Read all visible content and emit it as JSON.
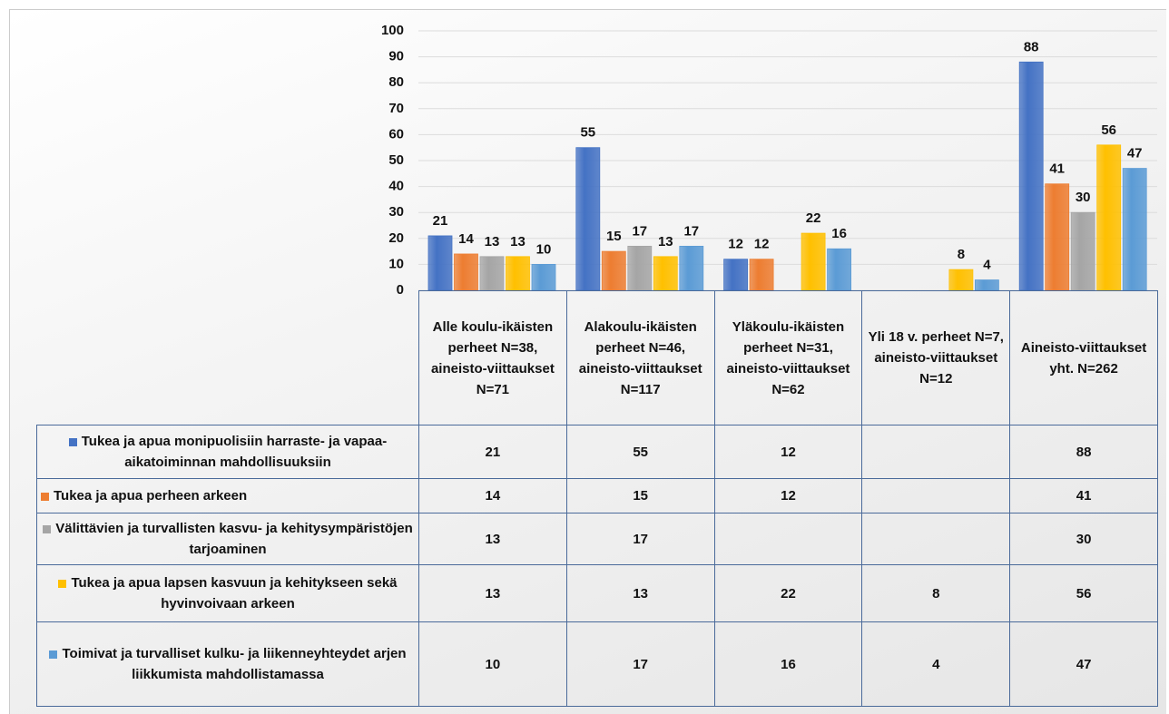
{
  "chart_data": {
    "type": "bar",
    "categories": [
      "Alle koulu-ikäisten perheet N=38, aineisto-viittaukset N=71",
      "Alakoulu-ikäisten perheet N=46, aineisto-viittaukset N=117",
      "Yläkoulu-ikäisten perheet N=31, aineisto-viittaukset N=62",
      "Yli 18 v. perheet N=7, aineisto-viittaukset N=12",
      "Aineisto-viittaukset yht. N=262"
    ],
    "series": [
      {
        "name": "Tukea ja apua monipuolisiin harraste- ja vapaa-aikatoiminnan mahdollisuuksiin",
        "color": "#4472c4",
        "values": [
          21,
          55,
          12,
          null,
          88
        ]
      },
      {
        "name": "Tukea ja apua perheen arkeen",
        "color": "#ed7d31",
        "values": [
          14,
          15,
          12,
          null,
          41
        ]
      },
      {
        "name": "Välittävien ja turvallisten kasvu- ja kehitysympäristöjen tarjoaminen",
        "color": "#a5a5a5",
        "values": [
          13,
          17,
          null,
          null,
          30
        ]
      },
      {
        "name": "Tukea ja apua lapsen kasvuun ja kehitykseen sekä hyvinvoivaan arkeen",
        "color": "#ffc000",
        "values": [
          13,
          13,
          22,
          8,
          56
        ]
      },
      {
        "name": "Toimivat ja turvalliset kulku- ja liikenneyhteydet arjen liikkumista mahdollistamassa",
        "color": "#5b9bd5",
        "values": [
          10,
          17,
          16,
          4,
          47
        ]
      }
    ],
    "ylim": [
      0,
      100
    ],
    "yticks": [
      0,
      10,
      20,
      30,
      40,
      50,
      60,
      70,
      80,
      90,
      100
    ],
    "grid": true,
    "data_table": true
  }
}
